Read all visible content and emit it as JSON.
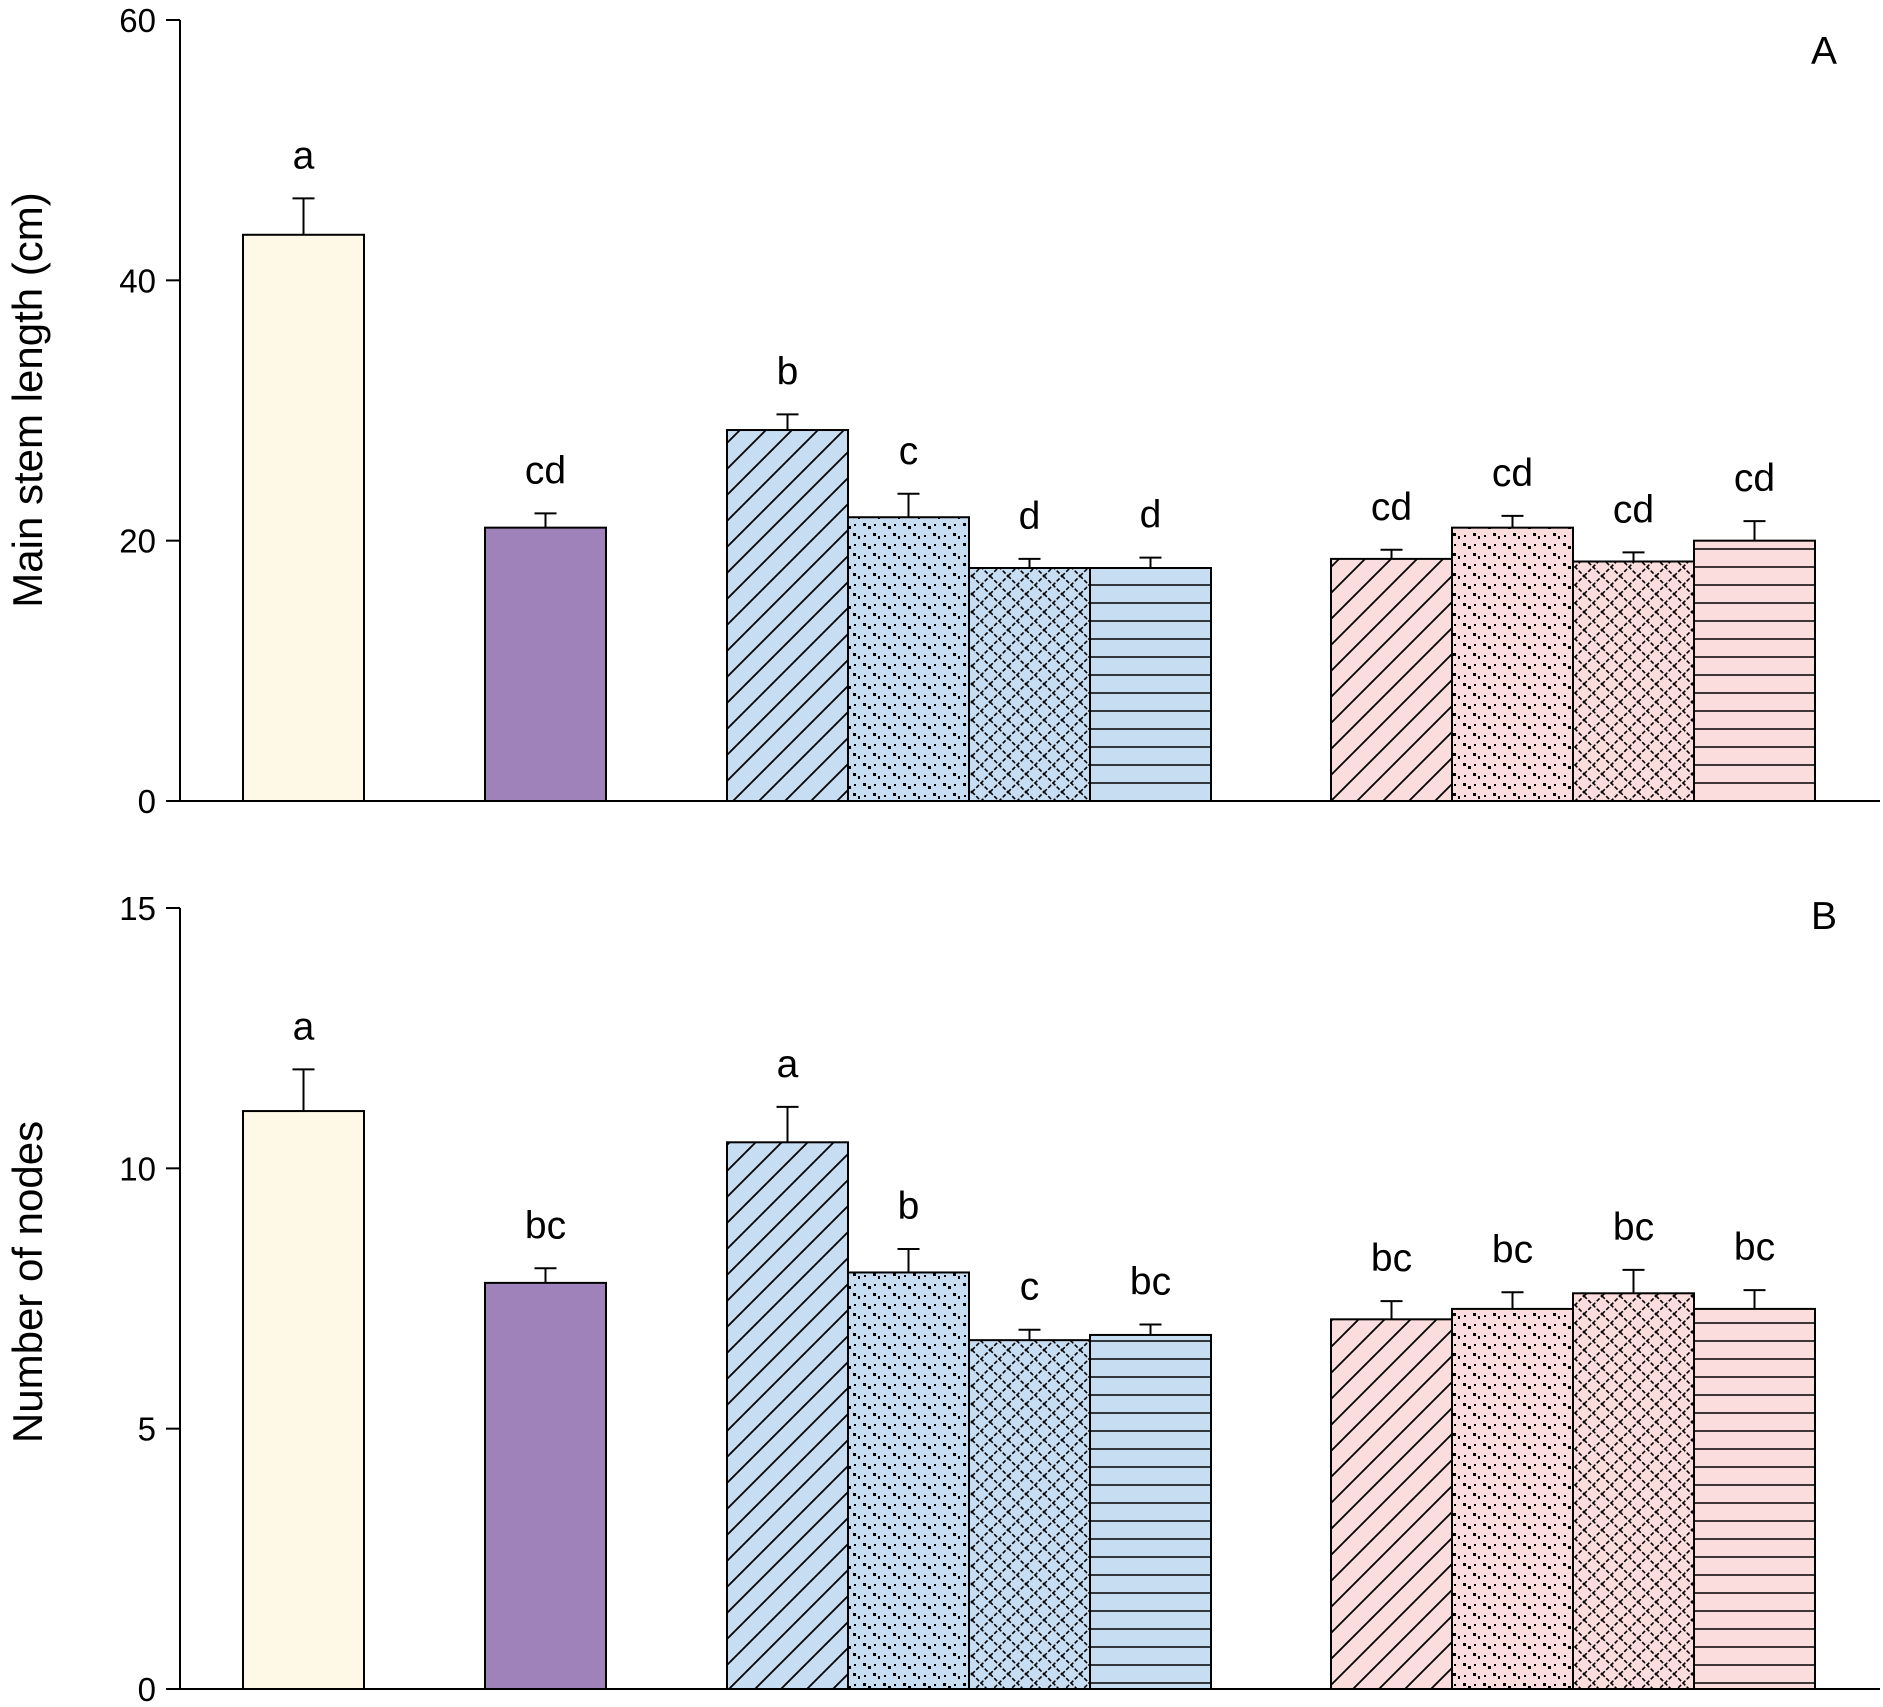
{
  "chart_data": [
    {
      "type": "bar",
      "panel_label": "A",
      "ylabel": "Main stem length (cm)",
      "xlabel": "",
      "ylim": [
        0,
        60
      ],
      "yticks": [
        "0",
        "20",
        "40",
        "60"
      ],
      "bars": [
        {
          "value": 43.5,
          "error": 2.8,
          "sig": "a",
          "fill": "#fdf9e6",
          "pattern": "none"
        },
        {
          "value": 21.0,
          "error": 1.1,
          "sig": "cd",
          "fill": "#9e82b9",
          "pattern": "none"
        },
        {
          "value": 28.5,
          "error": 1.2,
          "sig": "b",
          "fill": "#c6ddf2",
          "pattern": "diagonal"
        },
        {
          "value": 21.8,
          "error": 1.8,
          "sig": "c",
          "fill": "#c6ddf2",
          "pattern": "dots"
        },
        {
          "value": 17.9,
          "error": 0.7,
          "sig": "d",
          "fill": "#c6ddf2",
          "pattern": "lattice"
        },
        {
          "value": 17.9,
          "error": 0.8,
          "sig": "d",
          "fill": "#c6ddf2",
          "pattern": "horizontal"
        },
        {
          "value": 18.6,
          "error": 0.7,
          "sig": "cd",
          "fill": "#fcdddd",
          "pattern": "diagonal"
        },
        {
          "value": 21.0,
          "error": 0.9,
          "sig": "cd",
          "fill": "#fcdddd",
          "pattern": "dots"
        },
        {
          "value": 18.4,
          "error": 0.7,
          "sig": "cd",
          "fill": "#fcdddd",
          "pattern": "lattice"
        },
        {
          "value": 20.0,
          "error": 1.5,
          "sig": "cd",
          "fill": "#fcdddd",
          "pattern": "horizontal"
        }
      ]
    },
    {
      "type": "bar",
      "panel_label": "B",
      "ylabel": "Number of nodes",
      "xlabel": "",
      "ylim": [
        0,
        15
      ],
      "yticks": [
        "0",
        "5",
        "10",
        "15"
      ],
      "bars": [
        {
          "value": 11.1,
          "error": 0.8,
          "sig": "a",
          "fill": "#fdf9e6",
          "pattern": "none"
        },
        {
          "value": 7.8,
          "error": 0.28,
          "sig": "bc",
          "fill": "#9e82b9",
          "pattern": "none"
        },
        {
          "value": 10.5,
          "error": 0.68,
          "sig": "a",
          "fill": "#c6ddf2",
          "pattern": "diagonal"
        },
        {
          "value": 8.0,
          "error": 0.45,
          "sig": "b",
          "fill": "#c6ddf2",
          "pattern": "dots"
        },
        {
          "value": 6.7,
          "error": 0.2,
          "sig": "c",
          "fill": "#c6ddf2",
          "pattern": "lattice"
        },
        {
          "value": 6.8,
          "error": 0.2,
          "sig": "bc",
          "fill": "#c6ddf2",
          "pattern": "horizontal"
        },
        {
          "value": 7.1,
          "error": 0.35,
          "sig": "bc",
          "fill": "#fcdddd",
          "pattern": "diagonal"
        },
        {
          "value": 7.3,
          "error": 0.32,
          "sig": "bc",
          "fill": "#fcdddd",
          "pattern": "dots"
        },
        {
          "value": 7.6,
          "error": 0.45,
          "sig": "bc",
          "fill": "#fcdddd",
          "pattern": "lattice"
        },
        {
          "value": 7.3,
          "error": 0.36,
          "sig": "bc",
          "fill": "#fcdddd",
          "pattern": "horizontal"
        }
      ]
    }
  ]
}
